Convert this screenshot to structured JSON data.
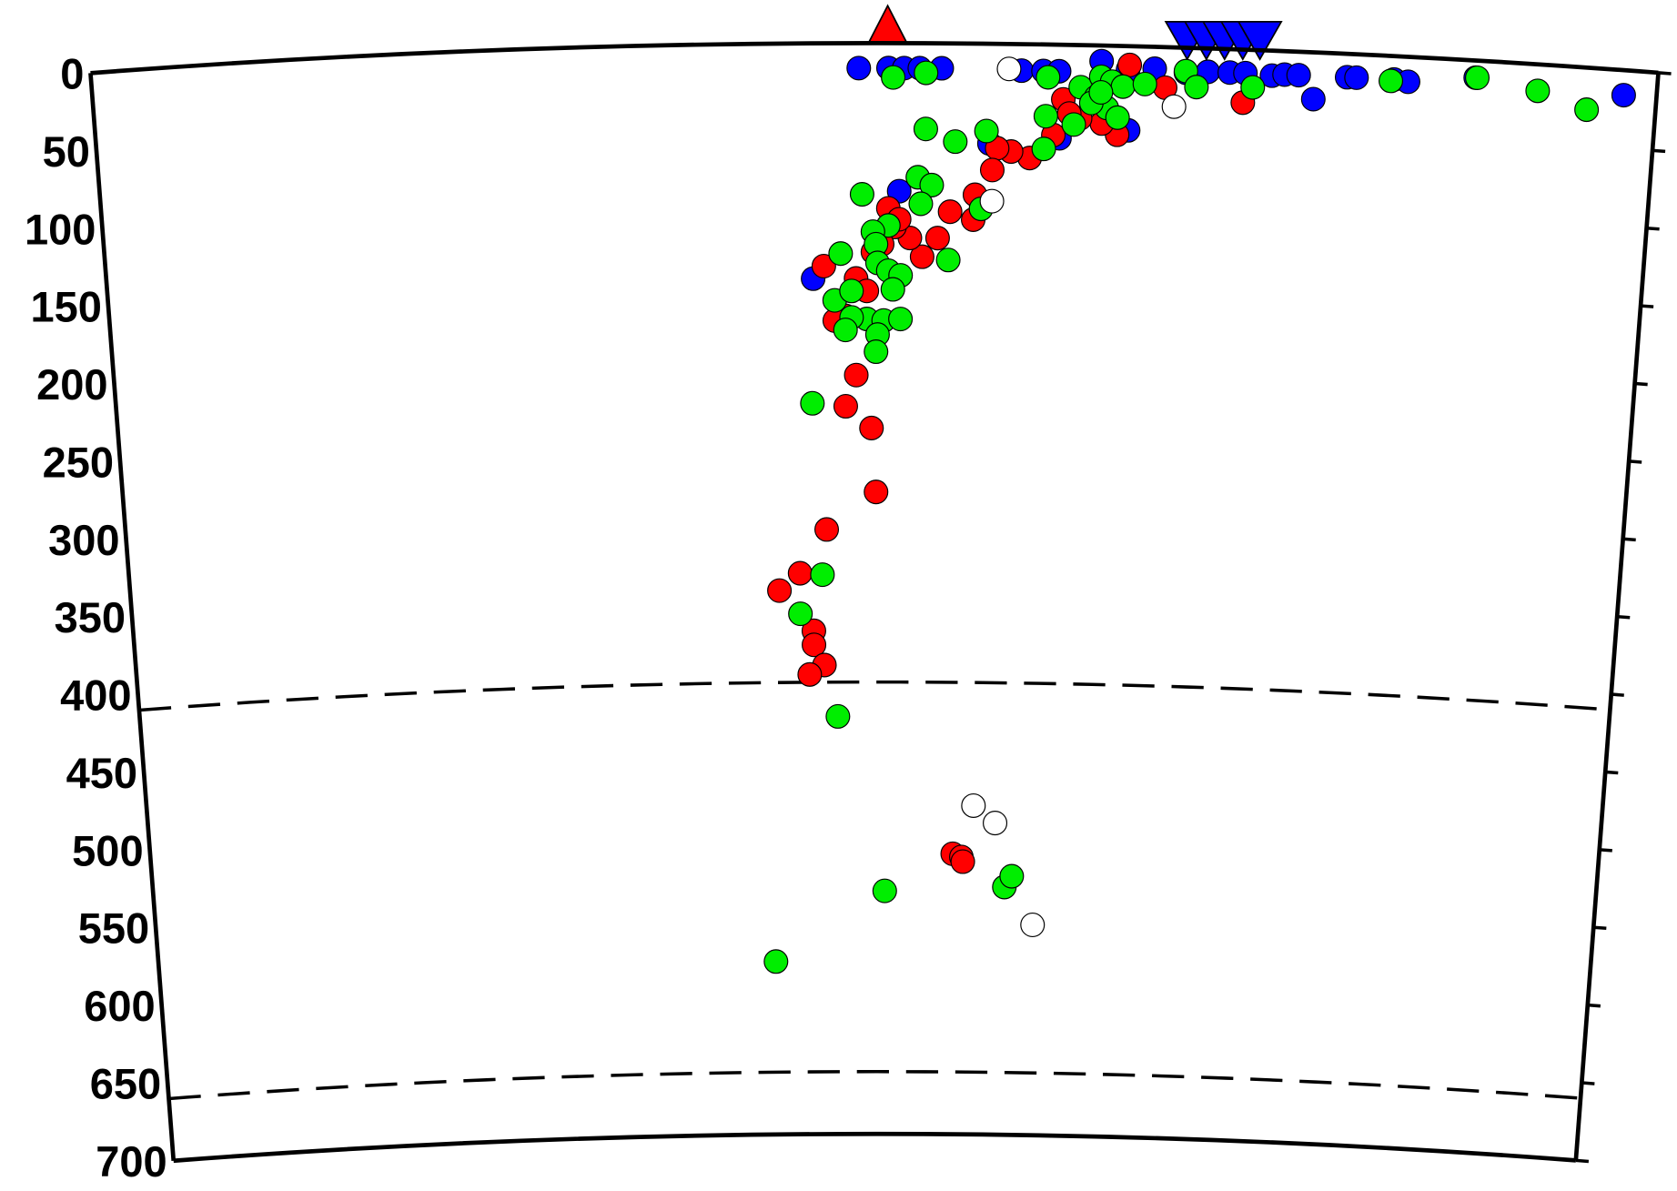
{
  "chart_data": {
    "type": "scatter",
    "xlim": [
      0,
      100
    ],
    "ylim": [
      0,
      700
    ],
    "yticks": [
      0,
      50,
      100,
      150,
      200,
      250,
      300,
      350,
      400,
      450,
      500,
      550,
      600,
      650,
      700
    ],
    "discontinuities": [
      410,
      660
    ],
    "series": [
      {
        "color": "#0000ff",
        "x": [
          49.0,
          50.9,
          51.9,
          52.9,
          54.3,
          59.4,
          60.8,
          61.8,
          64.5,
          66.2,
          67.9,
          69.9,
          71.3,
          72.7,
          73.7,
          75.4,
          76.2,
          77.1,
          78.1,
          80.2,
          80.8,
          83.2,
          84.1,
          88.4,
          97.9,
          46.0,
          51.6,
          57.4,
          61.9,
          66.3
        ],
        "values": [
          16,
          16,
          16,
          16,
          16,
          17,
          17,
          17,
          10,
          15,
          14,
          16,
          15,
          15,
          15,
          16,
          15,
          15,
          30,
          15,
          15,
          15,
          16,
          11,
          16,
          151,
          95,
          64,
          60,
          54
        ]
      },
      {
        "color": "#ff0000",
        "x": [
          73.6,
          68.6,
          66.3,
          65.6,
          64.6,
          63.2,
          62.1,
          62.5,
          61.5,
          60.0,
          58.8,
          57.9,
          57.6,
          56.5,
          56.4,
          54.9,
          54.1,
          53.1,
          52.3,
          51.3,
          50.5,
          49.9,
          50.9,
          51.6,
          48.8,
          49.5,
          46.7,
          48.1,
          47.4,
          48.8,
          48.1,
          49.8,
          50.1,
          46.8,
          45.0,
          43.6,
          45.9,
          45.9,
          46.6,
          45.6,
          55.4,
          56.0,
          56.1
        ],
        "values": [
          34,
          26,
          12,
          57,
          50,
          47,
          35,
          44,
          58,
          73,
          69,
          67,
          81,
          97,
          113,
          108,
          125,
          137,
          125,
          118,
          129,
          134,
          106,
          113,
          151,
          159,
          143,
          175,
          178,
          213,
          233,
          247,
          288,
          312,
          340,
          351,
          377,
          386,
          399,
          405,
          520,
          522,
          525
        ]
      },
      {
        "color": "#00ee00",
        "x": [
          51.2,
          53.3,
          69.9,
          70.6,
          61.1,
          63.2,
          64.5,
          65.2,
          64.2,
          64.9,
          65.9,
          67.3,
          65.6,
          63.9,
          64.5,
          74.2,
          83.0,
          88.5,
          92.4,
          95.6,
          61.0,
          62.8,
          60.9,
          56.9,
          53.3,
          55.2,
          57.2,
          52.8,
          53.7,
          53.0,
          50.9,
          49.2,
          49.9,
          50.1,
          47.8,
          50.2,
          50.9,
          51.7,
          51.2,
          47.4,
          48.5,
          49.5,
          50.6,
          50.2,
          48.5,
          48.1,
          51.7,
          50.1,
          45.9,
          46.5,
          45.0,
          47.5,
          50.7,
          59.0,
          59.5,
          43.1,
          54.8
        ],
        "values": [
          22,
          19,
          15,
          25,
          21,
          27,
          20,
          23,
          33,
          40,
          26,
          24,
          46,
          37,
          30,
          24,
          16,
          11,
          17,
          27,
          46,
          51,
          67,
          106,
          55,
          63,
          56,
          86,
          91,
          103,
          117,
          97,
          121,
          129,
          135,
          141,
          146,
          149,
          158,
          165,
          159,
          177,
          178,
          187,
          176,
          184,
          177,
          198,
          231,
          341,
          366,
          432,
          544,
          541,
          534,
          589,
          139
        ]
      },
      {
        "color": "#ffffff",
        "x": [
          58.6,
          69.2,
          57.6,
          56.8,
          58.3,
          61.0
        ],
        "values": [
          16,
          38,
          101,
          489,
          500,
          565
        ]
      }
    ]
  }
}
